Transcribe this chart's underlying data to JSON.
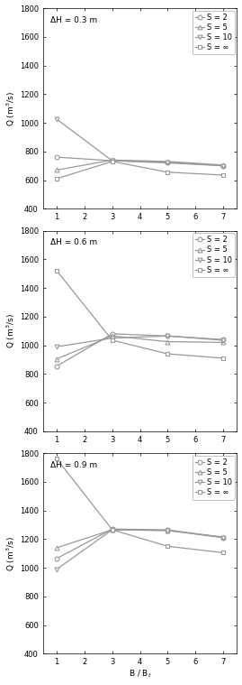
{
  "subplots": [
    {
      "title": "ΔH = 0.3 m",
      "x": [
        1,
        3,
        5,
        7
      ],
      "series": {
        "S = 2": [
          760,
          735,
          725,
          700
        ],
        "S = 5": [
          670,
          740,
          730,
          705
        ],
        "S = 10": [
          1025,
          735,
          720,
          700
        ],
        "S = ∞": [
          610,
          730,
          655,
          635
        ]
      },
      "ylim": [
        400,
        1800
      ],
      "yticks": [
        400,
        600,
        800,
        1000,
        1200,
        1400,
        1600,
        1800
      ]
    },
    {
      "title": "ΔH = 0.6 m",
      "x": [
        1,
        3,
        5,
        7
      ],
      "series": {
        "S = 2": [
          855,
          1080,
          1065,
          1040
        ],
        "S = 5": [
          905,
          1065,
          1025,
          1020
        ],
        "S = 10": [
          990,
          1050,
          1065,
          1035
        ],
        "S = ∞": [
          1520,
          1035,
          940,
          910
        ]
      },
      "ylim": [
        400,
        1800
      ],
      "yticks": [
        400,
        600,
        800,
        1000,
        1200,
        1400,
        1600,
        1800
      ]
    },
    {
      "title": "ΔH = 0.9 m",
      "x": [
        1,
        3,
        5,
        7
      ],
      "series": {
        "S = 2": [
          1065,
          1270,
          1265,
          1210
        ],
        "S = 5": [
          1140,
          1265,
          1260,
          1215
        ],
        "S = 10": [
          990,
          1265,
          1260,
          1210
        ],
        "S = ∞": [
          1760,
          1265,
          1150,
          1105
        ]
      },
      "ylim": [
        400,
        1800
      ],
      "yticks": [
        400,
        600,
        800,
        1000,
        1200,
        1400,
        1600,
        1800
      ]
    }
  ],
  "markers": {
    "S = 2": "o",
    "S = 5": "^",
    "S = 10": "v",
    "S = ∞": "s"
  },
  "line_color": "#999999",
  "xticks": [
    1,
    2,
    3,
    4,
    5,
    6,
    7
  ],
  "linewidth": 0.9,
  "markersize": 3.5,
  "title_fontsize": 6.5,
  "label_fontsize": 6.5,
  "tick_fontsize": 6,
  "legend_fontsize": 6,
  "figsize": [
    2.69,
    7.59
  ],
  "dpi": 100
}
